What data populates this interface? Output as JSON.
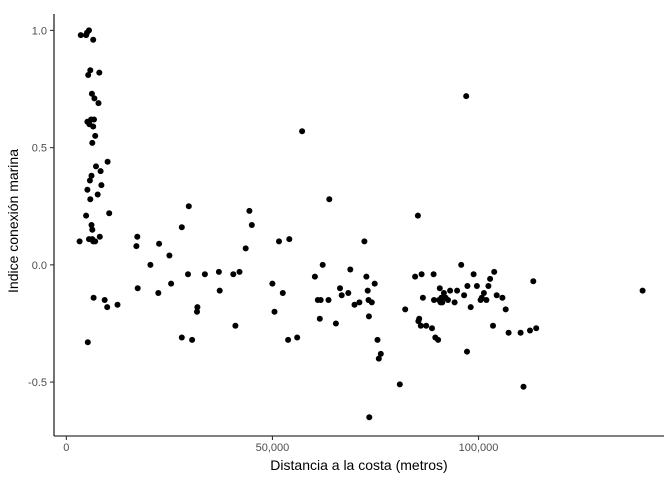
{
  "chart_data": {
    "type": "scatter",
    "title": "",
    "xlabel": "Distancia a la costa (metros)",
    "ylabel": "Indice conexión marina",
    "xlim": [
      -3000,
      145000
    ],
    "ylim": [
      -0.73,
      1.07
    ],
    "x_ticks": [
      0,
      50000,
      100000
    ],
    "x_tick_labels": [
      "0",
      "50,000",
      "100,000"
    ],
    "y_ticks": [
      -0.5,
      0.0,
      0.5,
      1.0
    ],
    "y_tick_labels": [
      "-0.5",
      "0.0",
      "0.5",
      "1.0"
    ],
    "grid": false,
    "point_color": "#000000",
    "points": [
      [
        3500,
        0.98
      ],
      [
        5000,
        0.99
      ],
      [
        5500,
        1.0
      ],
      [
        6500,
        0.96
      ],
      [
        4800,
        0.98
      ],
      [
        5800,
        0.83
      ],
      [
        5300,
        0.81
      ],
      [
        8000,
        0.82
      ],
      [
        6200,
        0.73
      ],
      [
        6800,
        0.71
      ],
      [
        7800,
        0.69
      ],
      [
        6000,
        0.62
      ],
      [
        5100,
        0.61
      ],
      [
        6700,
        0.62
      ],
      [
        5600,
        0.6
      ],
      [
        6500,
        0.59
      ],
      [
        7000,
        0.55
      ],
      [
        6300,
        0.52
      ],
      [
        10000,
        0.44
      ],
      [
        7200,
        0.42
      ],
      [
        8300,
        0.4
      ],
      [
        6100,
        0.38
      ],
      [
        5700,
        0.36
      ],
      [
        8500,
        0.34
      ],
      [
        5100,
        0.32
      ],
      [
        7600,
        0.3
      ],
      [
        5800,
        0.28
      ],
      [
        4800,
        0.21
      ],
      [
        10400,
        0.22
      ],
      [
        8100,
        0.12
      ],
      [
        6100,
        0.17
      ],
      [
        6300,
        0.15
      ],
      [
        5500,
        0.11
      ],
      [
        3200,
        0.1
      ],
      [
        6500,
        0.1
      ],
      [
        7000,
        0.1
      ],
      [
        6300,
        0.11
      ],
      [
        9300,
        -0.15
      ],
      [
        9900,
        -0.18
      ],
      [
        6600,
        -0.14
      ],
      [
        5200,
        -0.33
      ],
      [
        12400,
        -0.17
      ],
      [
        17200,
        0.12
      ],
      [
        17000,
        0.08
      ],
      [
        17300,
        -0.1
      ],
      [
        20400,
        0.0
      ],
      [
        22500,
        0.09
      ],
      [
        22300,
        -0.12
      ],
      [
        25000,
        0.04
      ],
      [
        25400,
        -0.08
      ],
      [
        28000,
        0.16
      ],
      [
        29700,
        0.25
      ],
      [
        29500,
        -0.04
      ],
      [
        28000,
        -0.31
      ],
      [
        30500,
        -0.32
      ],
      [
        31700,
        -0.2
      ],
      [
        31800,
        -0.18
      ],
      [
        33600,
        -0.04
      ],
      [
        37000,
        -0.03
      ],
      [
        37200,
        -0.11
      ],
      [
        40500,
        -0.04
      ],
      [
        41000,
        -0.26
      ],
      [
        42000,
        -0.03
      ],
      [
        43500,
        0.07
      ],
      [
        44400,
        0.23
      ],
      [
        45000,
        0.17
      ],
      [
        50000,
        -0.08
      ],
      [
        50500,
        -0.2
      ],
      [
        51600,
        0.1
      ],
      [
        52500,
        -0.12
      ],
      [
        53800,
        -0.32
      ],
      [
        54100,
        0.11
      ],
      [
        56000,
        -0.31
      ],
      [
        57200,
        0.57
      ],
      [
        60300,
        -0.05
      ],
      [
        61000,
        -0.15
      ],
      [
        61700,
        -0.15
      ],
      [
        62200,
        0.0
      ],
      [
        61500,
        -0.23
      ],
      [
        63600,
        -0.15
      ],
      [
        63800,
        0.28
      ],
      [
        65400,
        -0.25
      ],
      [
        66400,
        -0.1
      ],
      [
        66800,
        -0.13
      ],
      [
        68400,
        -0.12
      ],
      [
        68900,
        -0.02
      ],
      [
        69900,
        -0.17
      ],
      [
        71100,
        -0.16
      ],
      [
        72300,
        0.1
      ],
      [
        72800,
        -0.05
      ],
      [
        73100,
        -0.11
      ],
      [
        73300,
        -0.15
      ],
      [
        73400,
        -0.22
      ],
      [
        73500,
        -0.65
      ],
      [
        74100,
        -0.16
      ],
      [
        74800,
        -0.08
      ],
      [
        75500,
        -0.32
      ],
      [
        75800,
        -0.4
      ],
      [
        76300,
        -0.38
      ],
      [
        80900,
        -0.51
      ],
      [
        82200,
        -0.19
      ],
      [
        84600,
        -0.05
      ],
      [
        85300,
        0.21
      ],
      [
        85400,
        -0.24
      ],
      [
        85600,
        -0.23
      ],
      [
        86200,
        -0.04
      ],
      [
        86500,
        -0.14
      ],
      [
        86000,
        -0.26
      ],
      [
        87300,
        -0.26
      ],
      [
        88700,
        -0.27
      ],
      [
        89100,
        -0.04
      ],
      [
        89200,
        -0.15
      ],
      [
        89500,
        -0.31
      ],
      [
        90200,
        -0.32
      ],
      [
        90400,
        -0.15
      ],
      [
        90600,
        -0.1
      ],
      [
        90800,
        -0.16
      ],
      [
        91000,
        -0.14
      ],
      [
        91200,
        -0.16
      ],
      [
        91600,
        -0.12
      ],
      [
        92000,
        -0.14
      ],
      [
        92600,
        -0.15
      ],
      [
        93100,
        -0.11
      ],
      [
        94200,
        -0.16
      ],
      [
        94800,
        -0.11
      ],
      [
        95800,
        0.0
      ],
      [
        96500,
        -0.13
      ],
      [
        97000,
        0.72
      ],
      [
        97200,
        -0.37
      ],
      [
        97300,
        -0.09
      ],
      [
        98100,
        -0.18
      ],
      [
        98800,
        -0.04
      ],
      [
        99600,
        -0.09
      ],
      [
        100500,
        -0.15
      ],
      [
        100800,
        -0.14
      ],
      [
        101300,
        -0.12
      ],
      [
        101900,
        -0.15
      ],
      [
        102400,
        -0.09
      ],
      [
        102800,
        -0.06
      ],
      [
        103500,
        -0.26
      ],
      [
        103800,
        -0.03
      ],
      [
        104400,
        -0.13
      ],
      [
        105800,
        -0.14
      ],
      [
        106600,
        -0.19
      ],
      [
        107300,
        -0.29
      ],
      [
        110200,
        -0.29
      ],
      [
        110900,
        -0.52
      ],
      [
        112500,
        -0.28
      ],
      [
        113300,
        -0.07
      ],
      [
        114000,
        -0.27
      ],
      [
        139800,
        -0.11
      ]
    ]
  }
}
